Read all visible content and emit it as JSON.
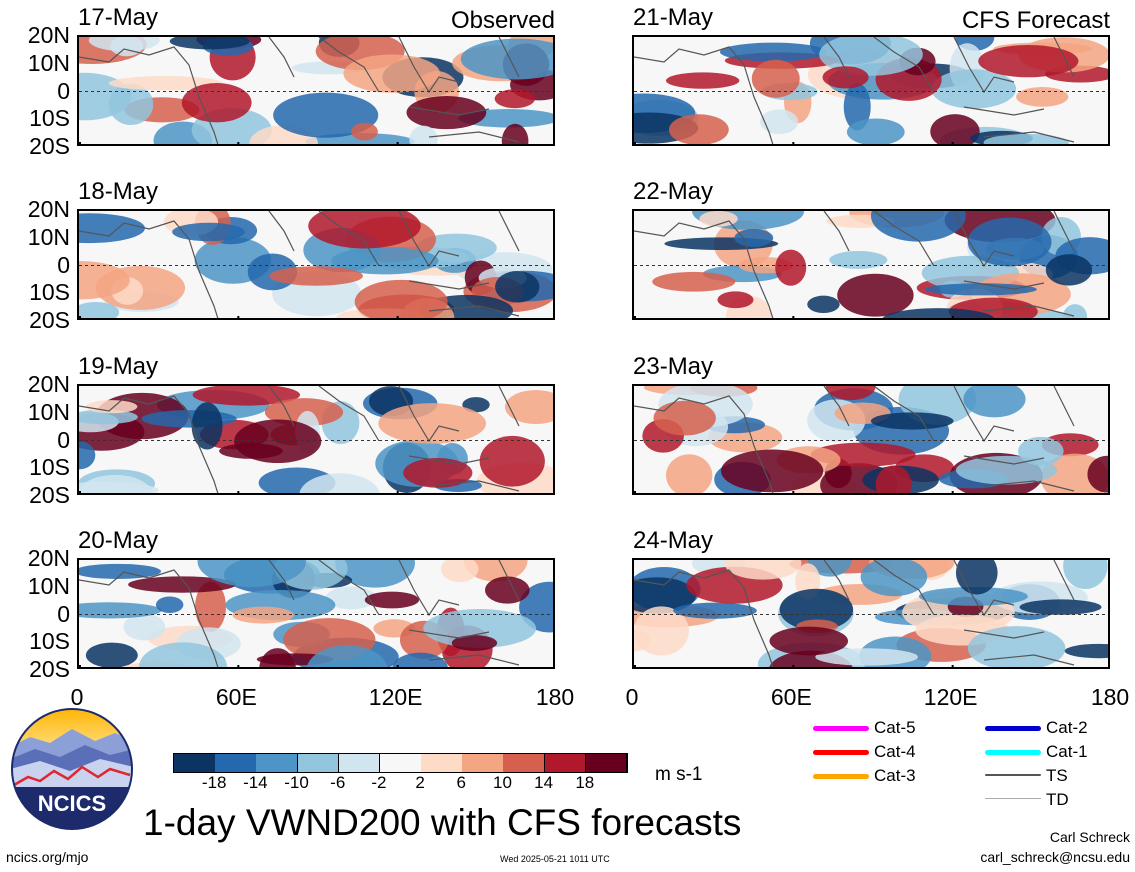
{
  "chart_data": [
    {
      "type": "heatmap",
      "date": "17-May",
      "tag": "Observed",
      "x_ticks": [
        "0",
        "60E",
        "120E",
        "180"
      ],
      "y_ticks": [
        "20N",
        "10N",
        "0",
        "10S",
        "20S"
      ],
      "xlim": [
        0,
        180
      ],
      "ylim": [
        -20,
        20
      ]
    },
    {
      "type": "heatmap",
      "date": "21-May",
      "tag": "CFS Forecast",
      "x_ticks": [
        "0",
        "60E",
        "120E",
        "180"
      ],
      "y_ticks": [
        "20N",
        "10N",
        "0",
        "10S",
        "20S"
      ],
      "xlim": [
        0,
        180
      ],
      "ylim": [
        -20,
        20
      ]
    },
    {
      "type": "heatmap",
      "date": "18-May",
      "tag": "",
      "x_ticks": [
        "0",
        "60E",
        "120E",
        "180"
      ],
      "y_ticks": [
        "20N",
        "10N",
        "0",
        "10S",
        "20S"
      ],
      "xlim": [
        0,
        180
      ],
      "ylim": [
        -20,
        20
      ]
    },
    {
      "type": "heatmap",
      "date": "22-May",
      "tag": "",
      "x_ticks": [
        "0",
        "60E",
        "120E",
        "180"
      ],
      "y_ticks": [
        "20N",
        "10N",
        "0",
        "10S",
        "20S"
      ],
      "xlim": [
        0,
        180
      ],
      "ylim": [
        -20,
        20
      ]
    },
    {
      "type": "heatmap",
      "date": "19-May",
      "tag": "",
      "x_ticks": [
        "0",
        "60E",
        "120E",
        "180"
      ],
      "y_ticks": [
        "20N",
        "10N",
        "0",
        "10S",
        "20S"
      ],
      "xlim": [
        0,
        180
      ],
      "ylim": [
        -20,
        20
      ]
    },
    {
      "type": "heatmap",
      "date": "23-May",
      "tag": "",
      "x_ticks": [
        "0",
        "60E",
        "120E",
        "180"
      ],
      "y_ticks": [
        "20N",
        "10N",
        "0",
        "10S",
        "20S"
      ],
      "xlim": [
        0,
        180
      ],
      "ylim": [
        -20,
        20
      ]
    },
    {
      "type": "heatmap",
      "date": "20-May",
      "tag": "",
      "x_ticks": [
        "0",
        "60E",
        "120E",
        "180"
      ],
      "y_ticks": [
        "20N",
        "10N",
        "0",
        "10S",
        "20S"
      ],
      "xlim": [
        0,
        180
      ],
      "ylim": [
        -20,
        20
      ]
    },
    {
      "type": "heatmap",
      "date": "24-May",
      "tag": "",
      "x_ticks": [
        "0",
        "60E",
        "120E",
        "180"
      ],
      "y_ticks": [
        "20N",
        "10N",
        "0",
        "10S",
        "20S"
      ],
      "xlim": [
        0,
        180
      ],
      "ylim": [
        -20,
        20
      ]
    }
  ],
  "x_axis_labels": [
    "0",
    "60E",
    "120E",
    "180"
  ],
  "lat_labels": [
    "20N",
    "10N",
    "0",
    "10S",
    "20S"
  ],
  "colorbar": {
    "labels": [
      "-18",
      "-14",
      "-10",
      "-6",
      "-2",
      "2",
      "6",
      "10",
      "14",
      "18"
    ],
    "colors": [
      "#0b3463",
      "#2468ad",
      "#4c95c6",
      "#92c5de",
      "#d1e5f0",
      "#f7f7f7",
      "#fddbc7",
      "#f4a582",
      "#d6604d",
      "#b2182b",
      "#67001f"
    ],
    "units": "m s-1"
  },
  "legend": [
    {
      "label": "Cat-5",
      "color": "#ff00ff"
    },
    {
      "label": "Cat-2",
      "color": "#0000cc"
    },
    {
      "label": "Cat-4",
      "color": "#ff0000"
    },
    {
      "label": "Cat-1",
      "color": "#00ffff"
    },
    {
      "label": "Cat-3",
      "color": "#ffa500"
    },
    {
      "label": "TS",
      "color": "#555555"
    },
    {
      "label": "TD",
      "color": "#aaaaaa"
    }
  ],
  "logo_text": "NCICS",
  "title": "1-day VWND200 with CFS forecasts",
  "footer": {
    "url": "ncics.org/mjo",
    "timestamp": "Wed 2025-05-21 1011 UTC",
    "author": "Carl Schreck",
    "email": "carl_schreck@ncsu.edu"
  }
}
